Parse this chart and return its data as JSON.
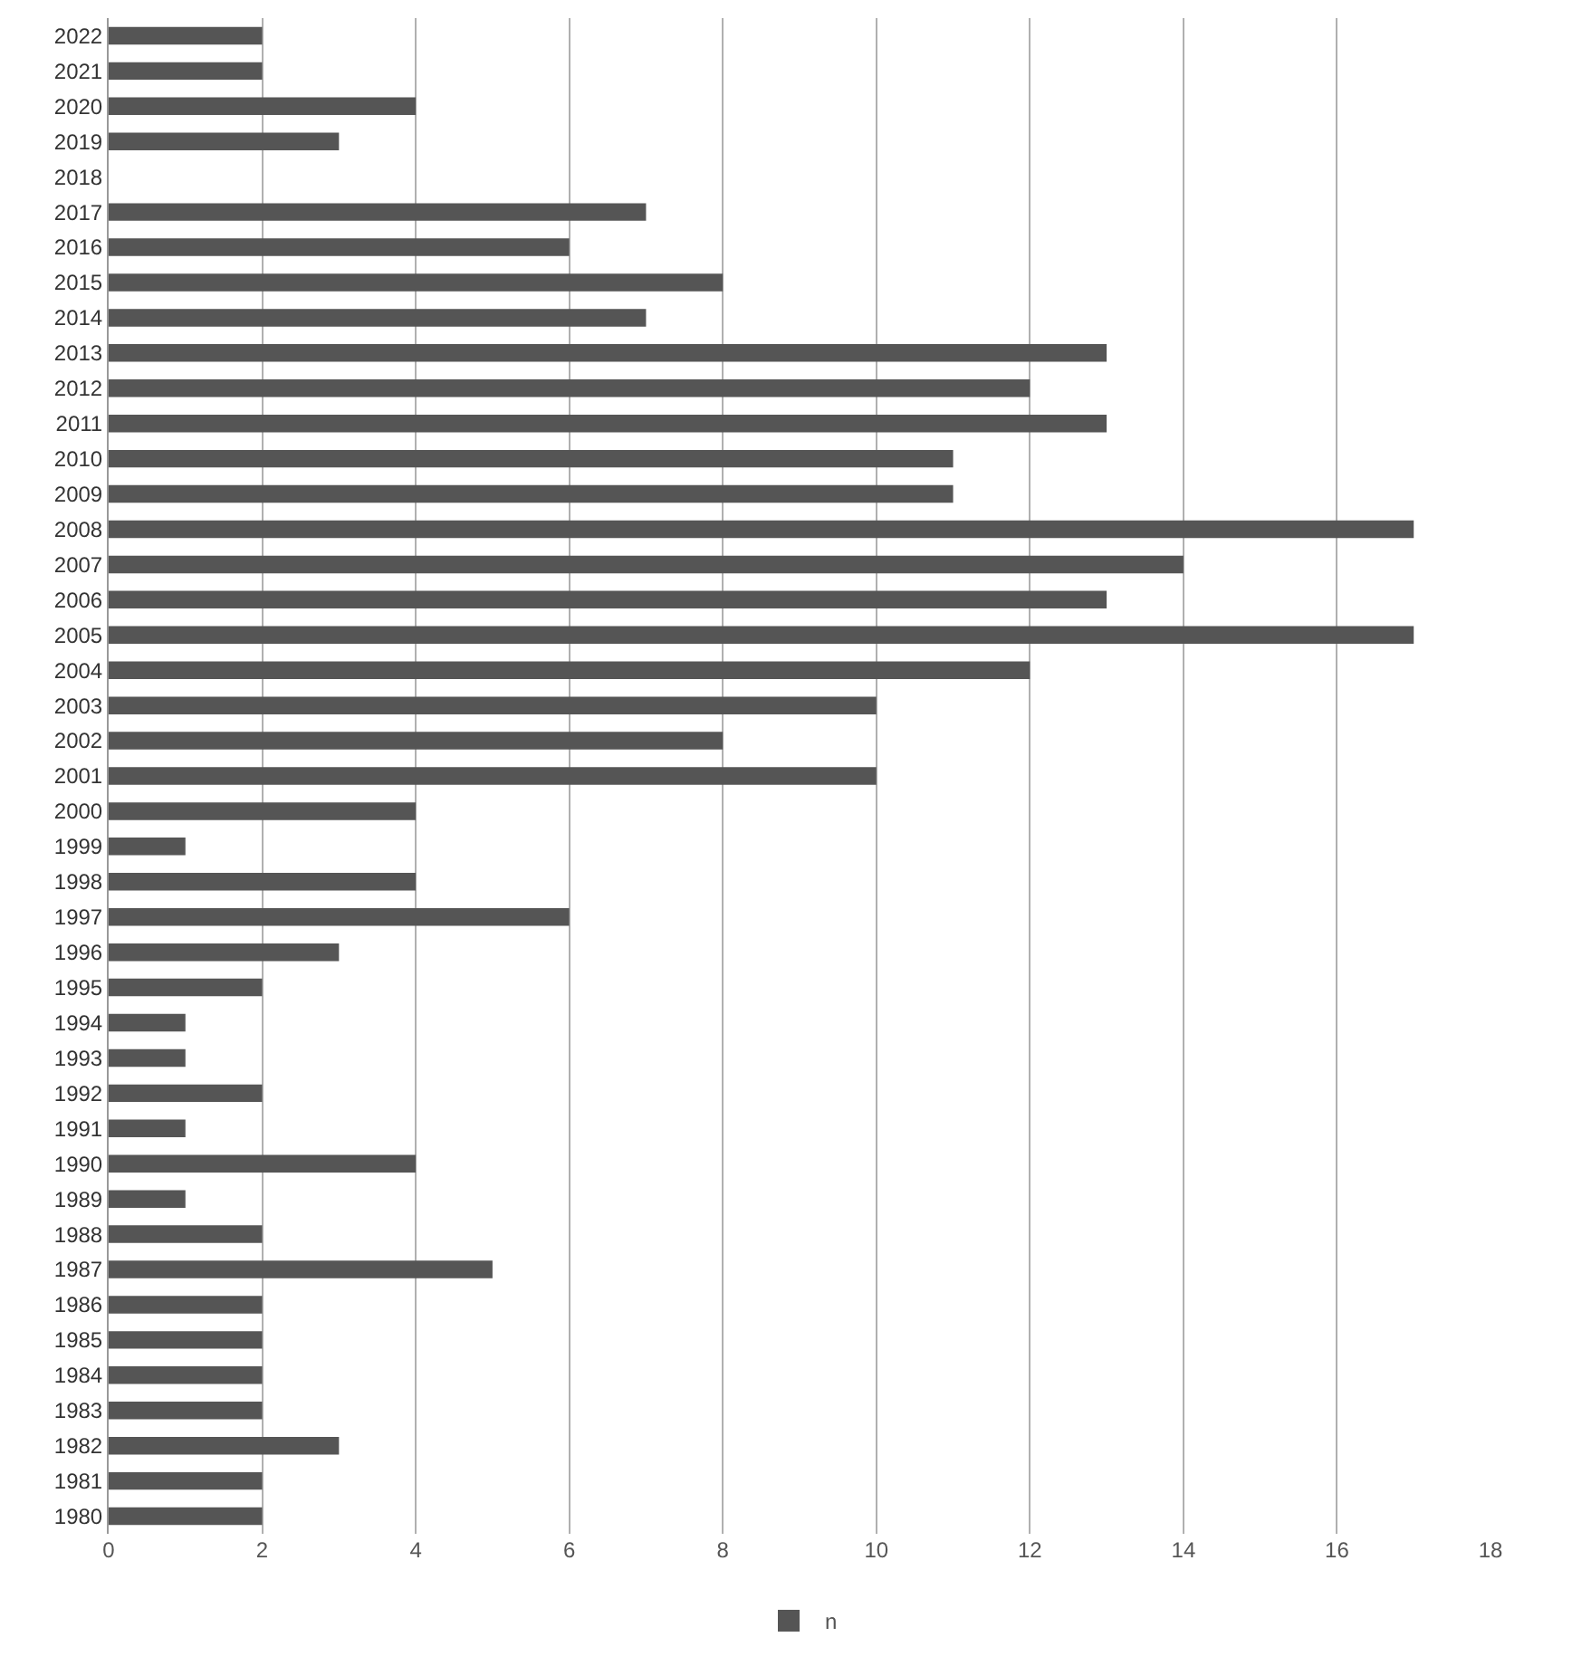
{
  "chart_data": {
    "type": "bar",
    "orientation": "horizontal",
    "categories": [
      "2022",
      "2021",
      "2020",
      "2019",
      "2018",
      "2017",
      "2016",
      "2015",
      "2014",
      "2013",
      "2012",
      "2011",
      "2010",
      "2009",
      "2008",
      "2007",
      "2006",
      "2005",
      "2004",
      "2003",
      "2002",
      "2001",
      "2000",
      "1999",
      "1998",
      "1997",
      "1996",
      "1995",
      "1994",
      "1993",
      "1992",
      "1991",
      "1990",
      "1989",
      "1988",
      "1987",
      "1986",
      "1985",
      "1984",
      "1983",
      "1982",
      "1981",
      "1980"
    ],
    "series": [
      {
        "name": "n",
        "color": "#555555",
        "values": [
          2,
          2,
          4,
          3,
          0,
          7,
          6,
          8,
          7,
          13,
          12,
          13,
          11,
          11,
          17,
          14,
          13,
          17,
          12,
          10,
          8,
          10,
          4,
          1,
          4,
          6,
          3,
          2,
          1,
          1,
          2,
          1,
          4,
          1,
          2,
          5,
          2,
          2,
          2,
          2,
          3,
          2,
          2
        ]
      }
    ],
    "xlim": [
      0,
      18
    ],
    "xticks": [
      0,
      2,
      4,
      6,
      8,
      10,
      12,
      14,
      16,
      18
    ],
    "grid": "x",
    "legend": "bottom"
  }
}
